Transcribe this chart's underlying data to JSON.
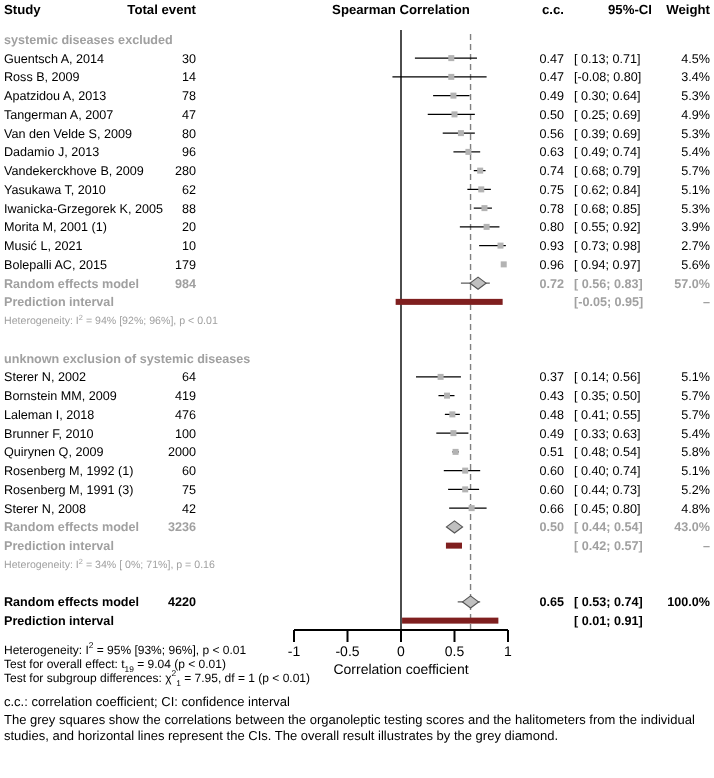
{
  "chart_data": {
    "type": "scatter",
    "orientation": "horizontal",
    "title": "Spearman Correlation",
    "ylabel": "Study",
    "xlabel": "Correlation coefficient",
    "categories": [
      "systemic diseases excluded",
      "Guentsch A, 2014",
      "Ross B, 2009",
      "Apatzidou A, 2013",
      "Tangerman A, 2007",
      "Van den Velde S, 2009",
      "Dadamio J, 2013",
      "Vandekerckhove B, 2009",
      "Yasukawa T, 2010",
      "Iwanicka-Grzegorek K, 2005",
      "Morita M, 2001 (1)",
      "Musić L, 2021",
      "Bolepalli AC, 2015",
      "Random effects model",
      "Prediction interval",
      "Heterogeneity: I$^{2}$ = 94% [92%; 96%], p < 0.01",
      null,
      "unknown exclusion of systemic diseases",
      "Sterer N, 2002",
      "Bornstein MM, 2009",
      "Laleman I, 2018",
      "Brunner F, 2010",
      "Quirynen Q, 2009",
      "Rosenberg M, 1992 (1)",
      "Rosenberg M, 1991 (3)",
      "Sterer N, 2008",
      "Random effects model",
      "Prediction interval",
      "Heterogeneity: I$^{2}$ = 34% [ 0%; 71%], p = 0.16",
      null,
      "Random effects model",
      "Prediction interval"
    ],
    "xlim": [
      -1,
      1
    ],
    "xticks": [
      -1,
      -0.5,
      0,
      0.5,
      1
    ],
    "grid": false,
    "legend": false,
    "series": [
      {
        "type": "scatter",
        "marker": "square",
        "color": "#b3b3b3",
        "values": [
          null,
          0.47,
          0.47,
          0.49,
          0.5,
          0.56,
          0.63,
          0.74,
          0.75,
          0.78,
          0.8,
          0.93,
          0.96,
          null,
          null,
          null,
          null,
          null,
          0.37,
          0.43,
          0.48,
          0.49,
          0.51,
          0.6,
          0.6,
          0.66,
          null,
          null,
          null,
          null,
          null,
          null
        ],
        "errors": [
          null,
          [
            0.13,
            0.71
          ],
          [
            -0.08,
            0.8
          ],
          [
            0.3,
            0.64
          ],
          [
            0.25,
            0.69
          ],
          [
            0.39,
            0.69
          ],
          [
            0.49,
            0.74
          ],
          [
            0.68,
            0.79
          ],
          [
            0.62,
            0.84
          ],
          [
            0.68,
            0.85
          ],
          [
            0.55,
            0.92
          ],
          [
            0.73,
            0.98
          ],
          [
            0.94,
            0.97
          ],
          null,
          null,
          null,
          null,
          null,
          [
            0.14,
            0.56
          ],
          [
            0.35,
            0.5
          ],
          [
            0.41,
            0.55
          ],
          [
            0.33,
            0.63
          ],
          [
            0.48,
            0.54
          ],
          [
            0.4,
            0.74
          ],
          [
            0.44,
            0.73
          ],
          [
            0.45,
            0.8
          ],
          null,
          null,
          null,
          null,
          null,
          null
        ],
        "value_labels": [
          null,
          "0.47",
          "0.47",
          "0.49",
          "0.50",
          "0.56",
          "0.63",
          "0.74",
          "0.75",
          "0.78",
          "0.80",
          "0.93",
          "0.96",
          null,
          null,
          null,
          null,
          null,
          "0.37",
          "0.43",
          "0.48",
          "0.49",
          "0.51",
          "0.60",
          "0.60",
          "0.66",
          null,
          null,
          null,
          null,
          null,
          null
        ]
      },
      {
        "type": "scatter",
        "marker": "diamond",
        "color": "#c0c0c0",
        "values": [
          null,
          null,
          null,
          null,
          null,
          null,
          null,
          null,
          null,
          null,
          null,
          null,
          null,
          0.72,
          null,
          null,
          null,
          null,
          null,
          null,
          null,
          null,
          null,
          null,
          null,
          null,
          0.5,
          null,
          null,
          null,
          0.65,
          null
        ],
        "errors": [
          null,
          null,
          null,
          null,
          null,
          null,
          null,
          null,
          null,
          null,
          null,
          null,
          null,
          [
            0.56,
            0.83
          ],
          null,
          null,
          null,
          null,
          null,
          null,
          null,
          null,
          null,
          null,
          null,
          null,
          [
            0.44,
            0.54
          ],
          null,
          null,
          null,
          [
            0.53,
            0.74
          ],
          null
        ]
      },
      {
        "type": "bar",
        "color": "#7f1f1f",
        "values": [
          null,
          null,
          null,
          null,
          null,
          null,
          null,
          null,
          null,
          null,
          null,
          null,
          null,
          null,
          1.0,
          null,
          null,
          null,
          null,
          null,
          null,
          null,
          null,
          null,
          null,
          null,
          null,
          0.15,
          null,
          null,
          null,
          0.9
        ],
        "base": [
          null,
          null,
          null,
          null,
          null,
          null,
          null,
          null,
          null,
          null,
          null,
          null,
          null,
          null,
          -0.05,
          null,
          null,
          null,
          null,
          null,
          null,
          null,
          null,
          null,
          null,
          null,
          null,
          0.42,
          null,
          null,
          null,
          0.01
        ]
      }
    ],
    "ref_lines": [
      {
        "axis": "x",
        "value": 0,
        "color": "#000000",
        "line_style": "solid"
      },
      {
        "axis": "x",
        "value": 0.65,
        "color": "#808080",
        "line_style": "dashed"
      }
    ],
    "annotations": [
      "Total event",
      "c.c.",
      "95%-CI",
      "Weight",
      "30",
      "[ 0.13; 0.71]",
      "4.5%",
      "14",
      "[-0.08; 0.80]",
      "3.4%",
      "78",
      "[ 0.30; 0.64]",
      "5.3%",
      "47",
      "[ 0.25; 0.69]",
      "4.9%",
      "80",
      "[ 0.39; 0.69]",
      "5.3%",
      "96",
      "[ 0.49; 0.74]",
      "5.4%",
      "280",
      "[ 0.68; 0.79]",
      "5.7%",
      "62",
      "[ 0.62; 0.84]",
      "5.1%",
      "88",
      "[ 0.68; 0.85]",
      "5.3%",
      "20",
      "[ 0.55; 0.92]",
      "3.9%",
      "10",
      "[ 0.73; 0.98]",
      "2.7%",
      "179",
      "[ 0.94; 0.97]",
      "5.6%",
      "984",
      "0.72",
      "[ 0.56; 0.83]",
      "57.0%",
      "[-0.05; 0.95]",
      "–",
      "64",
      "[ 0.14; 0.56]",
      "5.1%",
      "419",
      "[ 0.35; 0.50]",
      "5.7%",
      "476",
      "[ 0.41; 0.55]",
      "5.7%",
      "100",
      "[ 0.33; 0.63]",
      "5.4%",
      "2000",
      "[ 0.48; 0.54]",
      "5.8%",
      "60",
      "[ 0.40; 0.74]",
      "5.1%",
      "75",
      "[ 0.44; 0.73]",
      "5.2%",
      "42",
      "[ 0.45; 0.80]",
      "4.8%",
      "3236",
      "0.50",
      "[ 0.44; 0.54]",
      "43.0%",
      "[ 0.42; 0.57]",
      "–",
      "4220",
      "0.65",
      "[ 0.53; 0.74]",
      "100.0%",
      "[ 0.01; 0.91]",
      "Heterogeneity: I$^{2}$ = 95% [93%; 96%], p < 0.01",
      "Test for overall effect: t$_{19}$ = 9.04 (p < 0.01)",
      "Test for subgroup differences: χ$^{2}$$_{1}$ = 7.95, df = 1 (p < 0.01)",
      "c.c.: correlation coefficient; CI: confidence interval",
      "The grey squares show the correlations between the organoleptic testing scores and the halitometers from the individual studies, and horizontal lines represent the CIs. The overall result illustrates by the grey diamond."
    ]
  }
}
